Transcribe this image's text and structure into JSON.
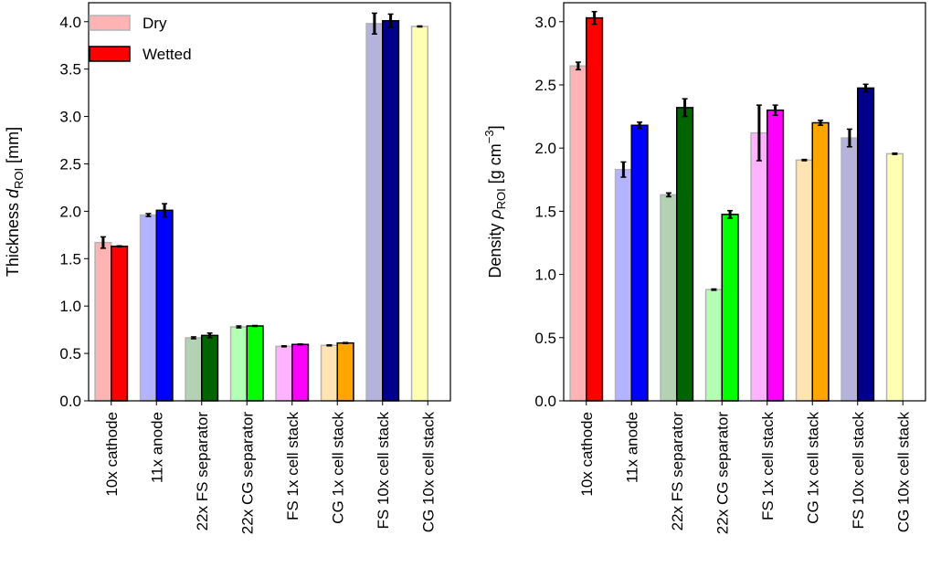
{
  "legend": {
    "dry_label": "Dry",
    "wetted_label": "Wetted",
    "placement": "top-left",
    "dry_alpha": 0.3
  },
  "chart_data": [
    {
      "type": "bar",
      "ylabel_main": "Thickness ",
      "ylabel_symbol": "d",
      "ylabel_sub": "ROI",
      "ylabel_unit": " [mm]",
      "ylim": [
        0,
        4.2
      ],
      "yticks": [
        0.0,
        0.5,
        1.0,
        1.5,
        2.0,
        2.5,
        3.0,
        3.5,
        4.0
      ],
      "tick_decimals": 1,
      "grid": false,
      "categories": [
        "10x cathode",
        "11x anode",
        "22x FS separator",
        "22x CG separator",
        "FS 1x cell stack",
        "CG 1x cell stack",
        "FS 10x cell stack",
        "CG 10x cell stack"
      ],
      "colors": [
        "#ff0000",
        "#0000ff",
        "#006400",
        "#00ff00",
        "#ff00ff",
        "#ffa500",
        "#00008b",
        "#ffff00"
      ],
      "series": [
        {
          "name": "Dry",
          "values": [
            1.67,
            1.96,
            0.665,
            0.78,
            0.575,
            0.585,
            3.98,
            3.95
          ],
          "errors": [
            0.06,
            0.015,
            0.01,
            0.01,
            0.005,
            0.005,
            0.11,
            0.005
          ]
        },
        {
          "name": "Wetted",
          "values": [
            1.63,
            2.01,
            0.69,
            0.79,
            0.595,
            0.61,
            4.01,
            0.0
          ],
          "errors": [
            0.005,
            0.07,
            0.025,
            0.005,
            0.005,
            0.005,
            0.07,
            0.0
          ]
        }
      ]
    },
    {
      "type": "bar",
      "ylabel_main": "Density ",
      "ylabel_symbol": "ρ",
      "ylabel_sub": "ROI",
      "ylabel_unit": " [g cm",
      "ylabel_sup": "−3",
      "ylabel_end": "]",
      "ylim": [
        0,
        3.15
      ],
      "yticks": [
        0.0,
        0.5,
        1.0,
        1.5,
        2.0,
        2.5,
        3.0
      ],
      "tick_decimals": 1,
      "grid": false,
      "categories": [
        "10x cathode",
        "11x anode",
        "22x FS separator",
        "22x CG separator",
        "FS 1x cell stack",
        "CG 1x cell stack",
        "FS 10x cell stack",
        "CG 10x cell stack"
      ],
      "colors": [
        "#ff0000",
        "#0000ff",
        "#006400",
        "#00ff00",
        "#ff00ff",
        "#ffa500",
        "#00008b",
        "#ffff00"
      ],
      "series": [
        {
          "name": "Dry",
          "values": [
            2.65,
            1.83,
            1.63,
            0.88,
            2.12,
            1.905,
            2.08,
            1.955
          ],
          "errors": [
            0.03,
            0.06,
            0.015,
            0.005,
            0.22,
            0.005,
            0.07,
            0.005
          ]
        },
        {
          "name": "Wetted",
          "values": [
            3.03,
            2.18,
            2.32,
            1.475,
            2.3,
            2.2,
            2.475,
            0.0
          ],
          "errors": [
            0.05,
            0.025,
            0.07,
            0.03,
            0.04,
            0.02,
            0.03,
            0.0
          ]
        }
      ]
    }
  ]
}
